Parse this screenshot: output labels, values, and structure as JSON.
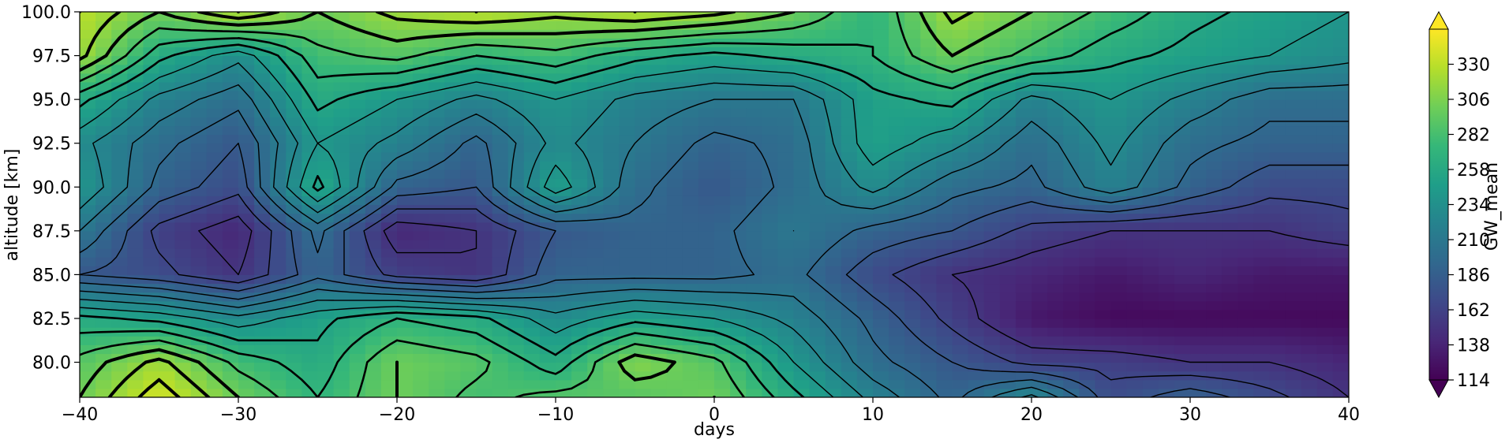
{
  "chart_data": {
    "type": "heatmap",
    "xlabel": "days",
    "ylabel": "altitude [km]",
    "colorbar_label": "GW_mean",
    "xlim": [
      -40,
      40
    ],
    "ylim": [
      78,
      100
    ],
    "x_ticks": [
      -40,
      -30,
      -20,
      -10,
      0,
      10,
      20,
      30,
      40
    ],
    "x_tick_labels": [
      "−40",
      "−30",
      "−20",
      "−10",
      "0",
      "10",
      "20",
      "30",
      "40"
    ],
    "y_ticks": [
      80.0,
      82.5,
      85.0,
      87.5,
      90.0,
      92.5,
      95.0,
      97.5,
      100.0
    ],
    "y_tick_labels": [
      "80.0",
      "82.5",
      "85.0",
      "87.5",
      "90.0",
      "92.5",
      "95.0",
      "97.5",
      "100.0"
    ],
    "colorbar_range": [
      114,
      354
    ],
    "colorbar_ticks": [
      114,
      138,
      162,
      186,
      210,
      234,
      258,
      282,
      306,
      330
    ],
    "colorbar_extend": "both",
    "colormap": "viridis",
    "colormap_stops": [
      "#440154",
      "#482878",
      "#3e4989",
      "#31688e",
      "#26828e",
      "#1f9e89",
      "#35b779",
      "#6ece58",
      "#b5de2b",
      "#fde725"
    ],
    "contour_color": "#000000",
    "grid": false,
    "x": [
      -40,
      -35,
      -30,
      -25,
      -20,
      -15,
      -10,
      -5,
      0,
      5,
      10,
      15,
      20,
      25,
      30,
      35,
      40
    ],
    "y": [
      78,
      80,
      82.5,
      85,
      87.5,
      90,
      92.5,
      95,
      97.5,
      100
    ],
    "values": [
      [
        300,
        340,
        300,
        270,
        300,
        280,
        290,
        290,
        300,
        260,
        220,
        190,
        230,
        170,
        190,
        170,
        150
      ],
      [
        290,
        320,
        280,
        260,
        300,
        290,
        260,
        310,
        290,
        240,
        200,
        180,
        160,
        160,
        150,
        150,
        140
      ],
      [
        260,
        250,
        230,
        250,
        270,
        260,
        230,
        250,
        240,
        220,
        190,
        160,
        130,
        120,
        120,
        120,
        120
      ],
      [
        180,
        170,
        150,
        190,
        160,
        150,
        190,
        190,
        190,
        200,
        170,
        150,
        140,
        130,
        140,
        130,
        130
      ],
      [
        210,
        160,
        140,
        200,
        140,
        150,
        180,
        190,
        190,
        210,
        190,
        180,
        160,
        150,
        150,
        150,
        160
      ],
      [
        240,
        190,
        170,
        260,
        190,
        180,
        250,
        200,
        180,
        200,
        230,
        200,
        190,
        220,
        190,
        170,
        170
      ],
      [
        230,
        200,
        180,
        240,
        220,
        190,
        230,
        210,
        190,
        200,
        250,
        230,
        200,
        230,
        200,
        190,
        190
      ],
      [
        260,
        220,
        200,
        260,
        240,
        220,
        240,
        220,
        210,
        210,
        250,
        260,
        220,
        240,
        220,
        200,
        200
      ],
      [
        320,
        260,
        230,
        280,
        290,
        270,
        280,
        260,
        250,
        260,
        270,
        300,
        280,
        260,
        250,
        240,
        230
      ],
      [
        330,
        300,
        330,
        300,
        320,
        330,
        320,
        330,
        320,
        300,
        270,
        320,
        300,
        280,
        260,
        250,
        240
      ]
    ]
  }
}
